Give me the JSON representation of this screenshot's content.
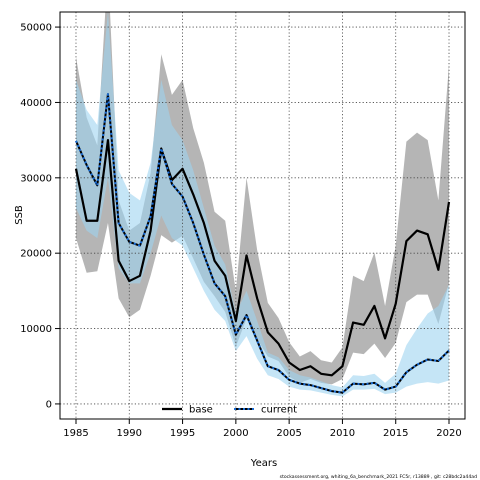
{
  "chart_data": {
    "type": "line",
    "xlabel": "Years",
    "ylabel": "SSB",
    "xlim": [
      1983.5,
      2021.5
    ],
    "ylim": [
      -2000,
      52000
    ],
    "x_ticks": [
      1985,
      1990,
      1995,
      2000,
      2005,
      2010,
      2015,
      2020
    ],
    "y_ticks": [
      0,
      10000,
      20000,
      30000,
      40000,
      50000
    ],
    "grid": true,
    "legend_position": "bottom-center",
    "x": [
      1985,
      1986,
      1987,
      1988,
      1989,
      1990,
      1991,
      1992,
      1993,
      1994,
      1995,
      1996,
      1997,
      1998,
      1999,
      2000,
      2001,
      2002,
      2003,
      2004,
      2005,
      2006,
      2007,
      2008,
      2009,
      2010,
      2011,
      2012,
      2013,
      2014,
      2015,
      2016,
      2017,
      2018,
      2019,
      2020
    ],
    "series": [
      {
        "name": "base",
        "color": "#000000",
        "band_color": "#a8a8a8",
        "values": [
          31200,
          24300,
          24300,
          35000,
          19000,
          16300,
          17000,
          23000,
          33800,
          29700,
          31200,
          27800,
          24000,
          19000,
          17000,
          11000,
          19700,
          14000,
          9500,
          8000,
          5500,
          4500,
          5000,
          4000,
          3800,
          5000,
          10800,
          10500,
          13000,
          8700,
          13300,
          21600,
          23000,
          22500,
          17800,
          26800
        ],
        "lower": [
          22000,
          17400,
          17600,
          24000,
          14000,
          11500,
          12500,
          17000,
          22400,
          21400,
          22300,
          19300,
          16200,
          14300,
          12200,
          7600,
          11300,
          8600,
          6300,
          5700,
          3600,
          2800,
          3300,
          2800,
          2600,
          3300,
          6800,
          6600,
          8000,
          6100,
          8100,
          13500,
          14500,
          14500,
          10600,
          16000
        ],
        "upper": [
          46000,
          38000,
          34300,
          58000,
          27000,
          23000,
          24000,
          30600,
          46400,
          41000,
          43000,
          36600,
          32000,
          25500,
          24300,
          15000,
          30000,
          20400,
          13400,
          11400,
          8200,
          6300,
          7000,
          5800,
          5500,
          7500,
          17000,
          16300,
          20100,
          13000,
          21000,
          34800,
          36000,
          35000,
          27000,
          45000
        ]
      },
      {
        "name": "current",
        "color": "#1a6ed8",
        "band_color": "#9fd3f0",
        "values": [
          34900,
          31700,
          29000,
          41100,
          24000,
          21500,
          21000,
          24900,
          33900,
          29200,
          27500,
          24000,
          19800,
          16000,
          14300,
          9200,
          11800,
          8400,
          5000,
          4500,
          3200,
          2700,
          2500,
          2100,
          1700,
          1500,
          2700,
          2600,
          2800,
          1900,
          2300,
          4200,
          5200,
          5900,
          5700,
          7100
        ],
        "lower": [
          26000,
          23000,
          22000,
          30000,
          18000,
          16000,
          16000,
          20000,
          25000,
          22000,
          21000,
          18000,
          15000,
          12500,
          11000,
          7000,
          9000,
          6000,
          3800,
          3300,
          2300,
          1900,
          1800,
          1500,
          1200,
          1000,
          1900,
          1900,
          2000,
          1300,
          1500,
          2300,
          2700,
          2900,
          2700,
          3100
        ],
        "upper": [
          43000,
          39000,
          37000,
          52000,
          31000,
          28000,
          27000,
          32000,
          43000,
          37000,
          35000,
          31000,
          26000,
          21000,
          18500,
          12000,
          15000,
          11000,
          6800,
          6200,
          4500,
          3800,
          3500,
          3000,
          2500,
          2200,
          3800,
          3700,
          4000,
          2800,
          4000,
          7800,
          10000,
          12000,
          13000,
          15800
        ]
      }
    ],
    "footer": "stockassessment.org, whiting_6a_benchmark_2021 FC5r, r13889 , git: c28bdc2a44ad"
  }
}
